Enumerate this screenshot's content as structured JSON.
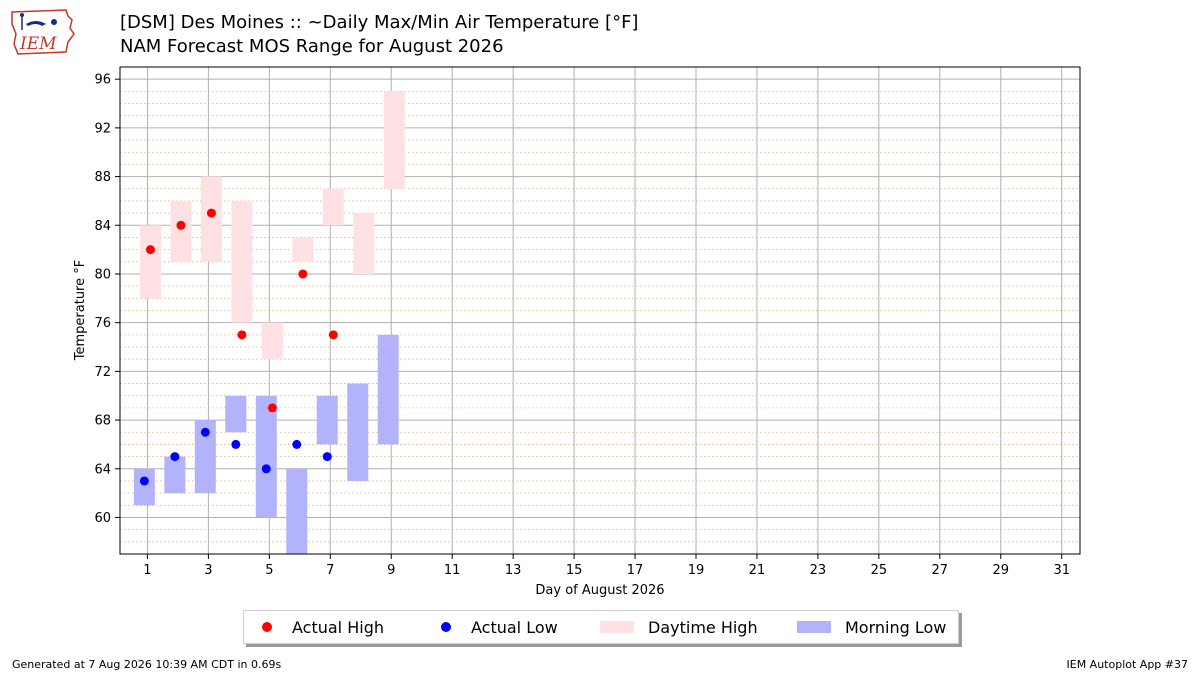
{
  "header": {
    "title_line1": "[DSM] Des Moines :: ~Daily Max/Min Air Temperature [°F]",
    "title_line2": "NAM Forecast MOS Range for August 2026",
    "logo_text": "IEM"
  },
  "footer": {
    "generated": "Generated at 7 Aug 2026 10:39 AM CDT in 0.69s",
    "app": "IEM Autoplot App #37"
  },
  "colors": {
    "actual_high": "#ff0000",
    "actual_low": "#0000ff",
    "daytime_high_range": "#ffe1e4",
    "morning_low_range": "#b3b3fb",
    "grid": "#b0b0b0",
    "minor_grid": "#d2b48c"
  },
  "legend": {
    "actual_high": "Actual High",
    "actual_low": "Actual Low",
    "daytime_high": "Daytime High",
    "morning_low": "Morning Low"
  },
  "chart_data": {
    "type": "scatter",
    "title": "[DSM] Des Moines :: ~Daily Max/Min Air Temperature [°F]",
    "subtitle": "NAM Forecast MOS Range for August 2026",
    "xlabel": "Day of August 2026",
    "ylabel": "Temperature °F",
    "xlim": [
      0.1,
      31.6
    ],
    "ylim": [
      57,
      97
    ],
    "xticks": [
      1,
      3,
      5,
      7,
      9,
      11,
      13,
      15,
      17,
      19,
      21,
      23,
      25,
      27,
      29,
      31
    ],
    "yticks": [
      60,
      64,
      68,
      72,
      76,
      80,
      84,
      88,
      92,
      96
    ],
    "grid": true,
    "legend_position": "bottom-center",
    "series": [
      {
        "name": "Actual High",
        "kind": "points",
        "x": [
          1,
          2,
          3,
          4,
          5,
          6,
          7
        ],
        "y": [
          82,
          84,
          85,
          75,
          69,
          80,
          75
        ]
      },
      {
        "name": "Actual Low",
        "kind": "points",
        "x": [
          1,
          2,
          3,
          4,
          5,
          6,
          7
        ],
        "y": [
          63,
          65,
          67,
          66,
          64,
          66,
          65
        ]
      },
      {
        "name": "Daytime High",
        "kind": "range",
        "x": [
          1,
          2,
          3,
          4,
          5,
          6,
          7,
          8,
          9
        ],
        "low": [
          78,
          81,
          81,
          76,
          73,
          81,
          84,
          80,
          87
        ],
        "high": [
          84,
          86,
          88,
          86,
          76,
          83,
          87,
          85,
          95
        ]
      },
      {
        "name": "Morning Low",
        "kind": "range",
        "x": [
          1,
          2,
          3,
          4,
          5,
          6,
          7,
          8,
          9
        ],
        "low": [
          61,
          62,
          62,
          67,
          60,
          57,
          66,
          63,
          66
        ],
        "high": [
          64,
          65,
          68,
          70,
          70,
          64,
          70,
          71,
          75
        ]
      }
    ]
  }
}
